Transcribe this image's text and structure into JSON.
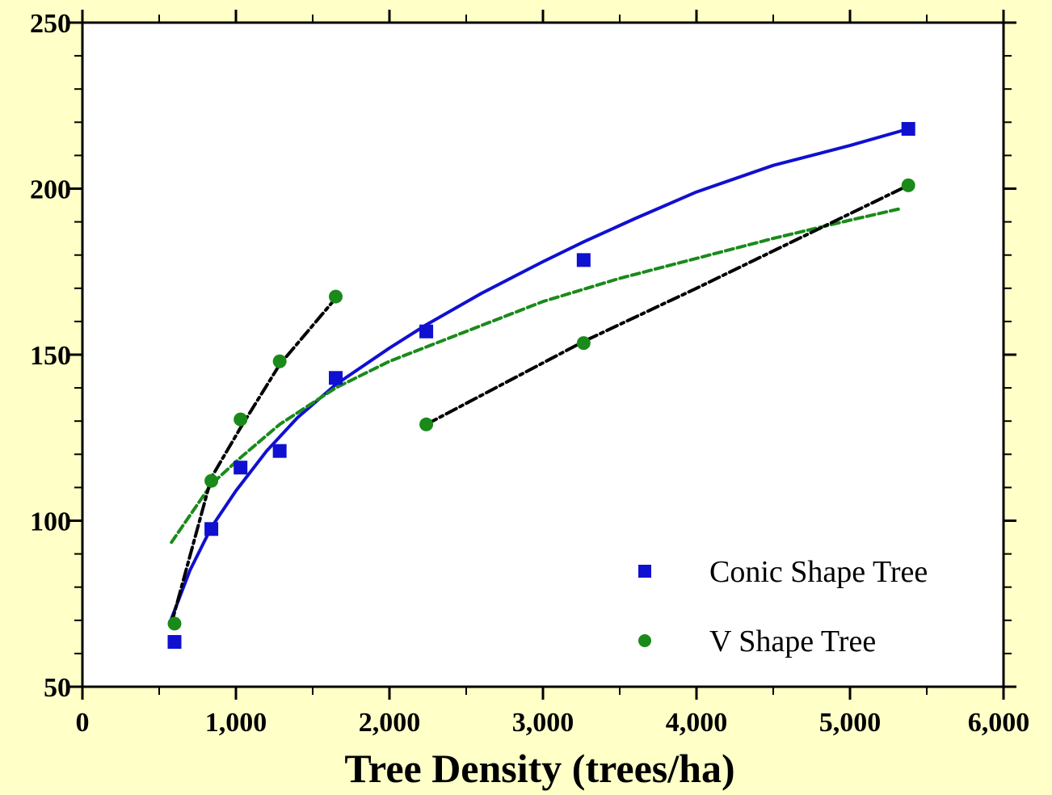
{
  "chart_data": {
    "type": "scatter",
    "title": "",
    "xlabel": "Tree Density (trees/ha)",
    "ylabel": "",
    "xlim": [
      0,
      6000
    ],
    "ylim": [
      50,
      250
    ],
    "x_ticks": [
      0,
      1000,
      2000,
      3000,
      4000,
      5000,
      6000
    ],
    "x_tick_labels": [
      "0",
      "1,000",
      "2,000",
      "3,000",
      "4,000",
      "5,000",
      "6,000"
    ],
    "y_ticks": [
      50,
      100,
      150,
      200,
      250
    ],
    "y_tick_labels": [
      "50",
      "100",
      "150",
      "200",
      "250"
    ],
    "y_minor_step": 10,
    "x_minor_step": 500,
    "grid": false,
    "legend_position": "bottom-right",
    "series": [
      {
        "name": "Conic Shape Tree",
        "marker": "square",
        "color": "#1010d0",
        "x": [
          600,
          840,
          1030,
          1285,
          1650,
          2240,
          3265,
          5380
        ],
        "y": [
          63.5,
          97.5,
          116,
          121,
          143,
          157,
          178.5,
          218
        ]
      },
      {
        "name": "V Shape Tree",
        "marker": "circle",
        "color": "#1a8a1a",
        "x": [
          600,
          840,
          1030,
          1285,
          1650,
          2240,
          3265,
          5380
        ],
        "y": [
          69,
          112,
          130.5,
          148,
          167.5,
          129,
          153.5,
          201
        ]
      }
    ],
    "fit_lines": [
      {
        "style": "solid",
        "color": "#1010d0",
        "x": [
          580,
          700,
          840,
          1000,
          1200,
          1400,
          1650,
          2000,
          2240,
          2600,
          3000,
          3265,
          3600,
          4000,
          4500,
          5000,
          5380
        ],
        "y": [
          70.5,
          85,
          98,
          109,
          121,
          131,
          141,
          152,
          159,
          168.5,
          178,
          184,
          191,
          199,
          207,
          213,
          218
        ]
      },
      {
        "style": "dashed",
        "color": "#1a8a1a",
        "x": [
          580,
          840,
          1030,
          1285,
          1650,
          2000,
          2500,
          3000,
          3500,
          4000,
          4500,
          5000,
          5330
        ],
        "y": [
          93.5,
          111,
          119,
          129,
          140,
          148,
          157,
          166,
          173,
          179,
          185,
          190.5,
          194
        ]
      },
      {
        "style": "dash-dot",
        "color": "#000000",
        "x": [
          580,
          840,
          1030,
          1285,
          1650
        ],
        "y": [
          69,
          113,
          128,
          147,
          167
        ]
      },
      {
        "style": "dash-dot",
        "color": "#000000",
        "x": [
          2240,
          3265,
          4000,
          5380
        ],
        "y": [
          129,
          154,
          170,
          201
        ]
      }
    ]
  }
}
